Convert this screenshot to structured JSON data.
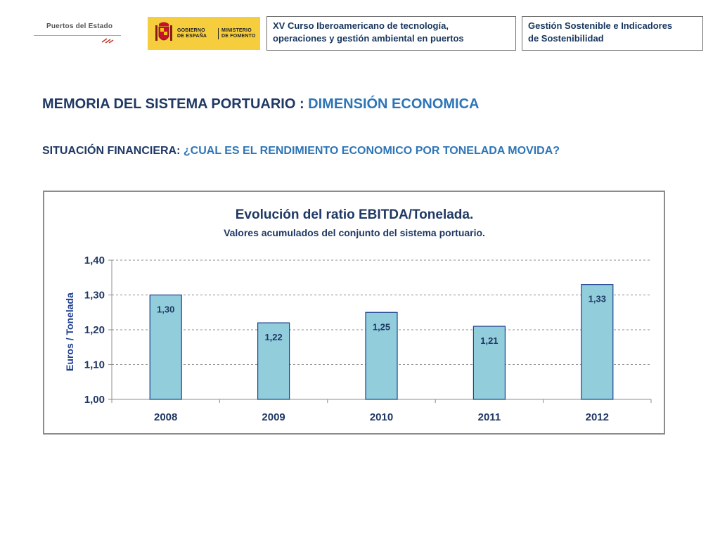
{
  "logos": {
    "puertos": {
      "text": "Puertos del Estado"
    },
    "gobierno": {
      "left_lines": [
        "GOBIERNO",
        "DE ESPAÑA"
      ],
      "right_lines": [
        "MINISTERIO",
        "DE FOMENTO"
      ]
    }
  },
  "header": {
    "course_lines": [
      "XV Curso Iberoamericano de tecnología,",
      "operaciones y gestión ambiental en puertos"
    ],
    "topic_lines": [
      "Gestión Sostenible e Indicadores",
      "de Sostenibilidad"
    ]
  },
  "title": {
    "main_prefix": "MEMORIA DEL SISTEMA PORTUARIO : ",
    "main_highlight": "DIMENSIÓN ECONOMICA",
    "sub_prefix": "SITUACIÓN FINANCIERA: ",
    "sub_highlight": "¿CUAL ES EL RENDIMIENTO ECONOMICO POR TONELADA MOVIDA?"
  },
  "colors": {
    "bar_fill": "#92cddc",
    "bar_stroke": "#1f3f8f",
    "text_dark": "#1f3864",
    "text_accent": "#2e75b6"
  },
  "chart_data": {
    "type": "bar",
    "title": "Evolución del ratio EBITDA/Tonelada.",
    "subtitle": "Valores acumulados del conjunto del sistema portuario.",
    "ylabel": "Euros / Tonelada",
    "xlabel": "",
    "categories": [
      "2008",
      "2009",
      "2010",
      "2011",
      "2012"
    ],
    "values": [
      1.3,
      1.22,
      1.25,
      1.21,
      1.33
    ],
    "value_labels": [
      "1,30",
      "1,22",
      "1,25",
      "1,21",
      "1,33"
    ],
    "ylim": [
      1.0,
      1.4
    ],
    "yticks": [
      1.0,
      1.1,
      1.2,
      1.3,
      1.4
    ],
    "ytick_labels": [
      "1,00",
      "1,10",
      "1,20",
      "1,30",
      "1,40"
    ],
    "grid": true,
    "legend": "none"
  }
}
